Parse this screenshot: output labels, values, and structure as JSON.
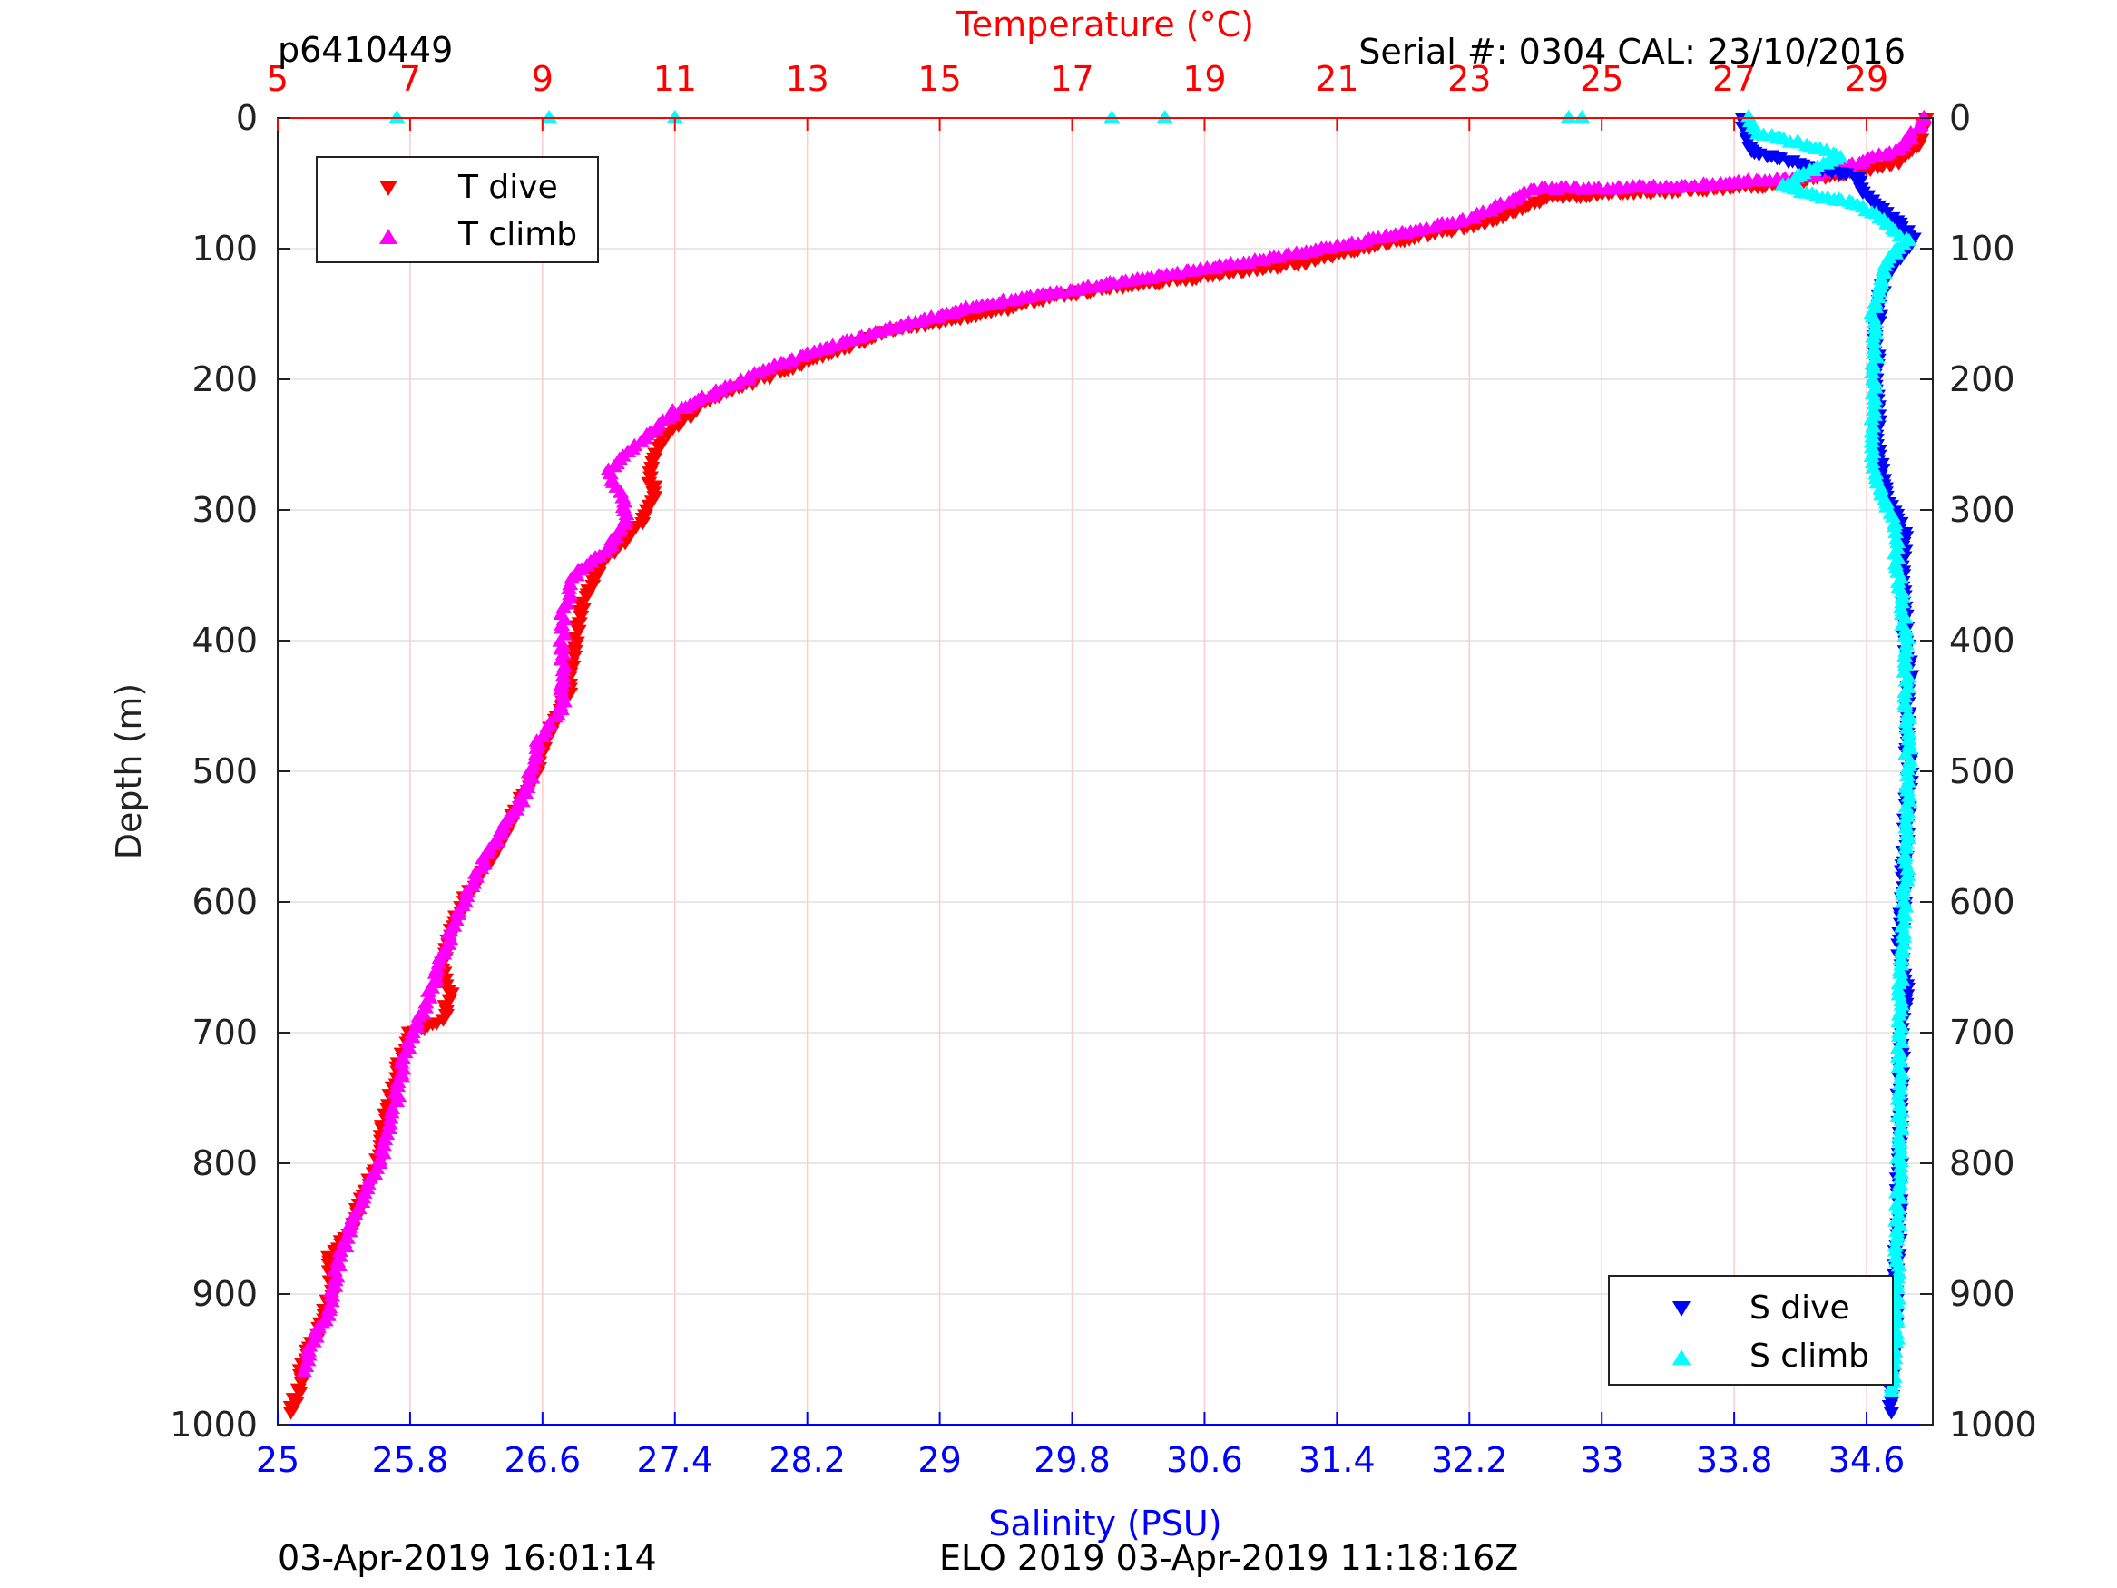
{
  "header": {
    "profile_id": "p6410449",
    "serial": "Serial #: 0304  CAL: 23/10/2016"
  },
  "footer": {
    "left": "03-Apr-2019 16:01:14",
    "center": "ELO 2019 03-Apr-2019 11:18:16Z"
  },
  "colors": {
    "t_dive": "#ff0000",
    "t_climb": "#ff00ff",
    "s_dive": "#0000ff",
    "s_climb": "#00ffff",
    "temp_axis": "#ff0000",
    "sal_axis": "#0000ff",
    "grid_temp": "#ffcccc",
    "grid_depth": "#e0e0e0"
  },
  "chart_data": {
    "type": "scatter",
    "title": "",
    "ylabel": "Depth (m)",
    "ylim": [
      0,
      1000
    ],
    "y_reversed": true,
    "y_ticks": [
      0,
      100,
      200,
      300,
      400,
      500,
      600,
      700,
      800,
      900,
      1000
    ],
    "temperature_axis": {
      "label": "Temperature (°C)",
      "position": "top",
      "lim": [
        5,
        30
      ],
      "ticks": [
        5,
        7,
        9,
        11,
        13,
        15,
        17,
        19,
        21,
        23,
        25,
        27,
        29
      ],
      "grid": true
    },
    "salinity_axis": {
      "label": "Salinity (PSU)",
      "position": "bottom",
      "lim": [
        25,
        35
      ],
      "ticks": [
        "25",
        "25.8",
        "26.6",
        "27.4",
        "28.2",
        "29",
        "29.8",
        "30.6",
        "31.4",
        "32.2",
        "33",
        "33.8",
        "34.6"
      ],
      "grid": false
    },
    "legends": [
      {
        "placement": "top-left",
        "entries": [
          "T dive",
          "T climb"
        ]
      },
      {
        "placement": "bottom-right",
        "entries": [
          "S dive",
          "S climb"
        ]
      }
    ],
    "series": [
      {
        "name": "T dive",
        "axis": "temperature",
        "marker": "triangle-down",
        "points": [
          [
            29.9,
            0
          ],
          [
            29.8,
            20
          ],
          [
            29.4,
            35
          ],
          [
            27.8,
            50
          ],
          [
            25.5,
            57
          ],
          [
            24.2,
            60
          ],
          [
            23.2,
            80
          ],
          [
            21.8,
            95
          ],
          [
            20.5,
            110
          ],
          [
            18.8,
            122
          ],
          [
            16.8,
            135
          ],
          [
            15.8,
            148
          ],
          [
            14.2,
            163
          ],
          [
            12.8,
            190
          ],
          [
            11.5,
            215
          ],
          [
            10.8,
            245
          ],
          [
            10.6,
            270
          ],
          [
            10.7,
            290
          ],
          [
            10.5,
            310
          ],
          [
            9.9,
            340
          ],
          [
            9.6,
            370
          ],
          [
            9.5,
            400
          ],
          [
            9.4,
            440
          ],
          [
            9.1,
            470
          ],
          [
            8.9,
            500
          ],
          [
            8.6,
            530
          ],
          [
            8.3,
            560
          ],
          [
            7.8,
            600
          ],
          [
            7.6,
            625
          ],
          [
            7.5,
            650
          ],
          [
            7.6,
            670
          ],
          [
            7.5,
            690
          ],
          [
            7.0,
            700
          ],
          [
            6.8,
            730
          ],
          [
            6.6,
            770
          ],
          [
            6.5,
            800
          ],
          [
            6.1,
            850
          ],
          [
            5.8,
            870
          ],
          [
            5.8,
            900
          ],
          [
            5.6,
            930
          ],
          [
            5.4,
            950
          ],
          [
            5.3,
            975
          ],
          [
            5.2,
            990
          ]
        ]
      },
      {
        "name": "T climb",
        "axis": "temperature",
        "marker": "triangle-up",
        "points": [
          [
            29.9,
            0
          ],
          [
            29.5,
            25
          ],
          [
            28.2,
            45
          ],
          [
            26.2,
            53
          ],
          [
            24.0,
            55
          ],
          [
            23.0,
            78
          ],
          [
            21.4,
            95
          ],
          [
            19.5,
            112
          ],
          [
            17.5,
            128
          ],
          [
            15.5,
            145
          ],
          [
            14.0,
            165
          ],
          [
            12.5,
            190
          ],
          [
            11.0,
            225
          ],
          [
            10.0,
            270
          ],
          [
            10.3,
            305
          ],
          [
            10.0,
            330
          ],
          [
            9.5,
            350
          ],
          [
            9.3,
            380
          ],
          [
            9.3,
            420
          ],
          [
            9.3,
            450
          ],
          [
            8.9,
            480
          ],
          [
            8.8,
            510
          ],
          [
            8.6,
            530
          ],
          [
            8.2,
            560
          ],
          [
            7.8,
            600
          ],
          [
            7.5,
            640
          ],
          [
            7.3,
            670
          ],
          [
            6.9,
            720
          ],
          [
            6.8,
            750
          ],
          [
            6.6,
            790
          ],
          [
            6.1,
            850
          ],
          [
            5.9,
            880
          ],
          [
            5.8,
            910
          ],
          [
            5.5,
            940
          ],
          [
            5.4,
            960
          ]
        ]
      },
      {
        "name": "S dive",
        "axis": "salinity",
        "marker": "triangle-down",
        "points": [
          [
            33.85,
            0
          ],
          [
            33.9,
            25
          ],
          [
            34.3,
            38
          ],
          [
            34.55,
            45
          ],
          [
            34.6,
            60
          ],
          [
            34.8,
            80
          ],
          [
            34.88,
            92
          ],
          [
            34.83,
            100
          ],
          [
            34.78,
            110
          ],
          [
            34.72,
            120
          ],
          [
            34.68,
            140
          ],
          [
            34.66,
            170
          ],
          [
            34.66,
            200
          ],
          [
            34.67,
            250
          ],
          [
            34.7,
            280
          ],
          [
            34.76,
            300
          ],
          [
            34.83,
            320
          ],
          [
            34.82,
            350
          ],
          [
            34.84,
            400
          ],
          [
            34.86,
            430
          ],
          [
            34.84,
            470
          ],
          [
            34.86,
            500
          ],
          [
            34.84,
            540
          ],
          [
            34.83,
            560
          ],
          [
            34.82,
            600
          ],
          [
            34.8,
            640
          ],
          [
            34.84,
            670
          ],
          [
            34.81,
            700
          ],
          [
            34.8,
            750
          ],
          [
            34.8,
            800
          ],
          [
            34.79,
            850
          ],
          [
            34.77,
            900
          ],
          [
            34.76,
            950
          ],
          [
            34.75,
            970
          ],
          [
            34.75,
            990
          ]
        ]
      },
      {
        "name": "S climb",
        "axis": "salinity",
        "marker": "triangle-up",
        "points": [
          [
            33.9,
            0
          ],
          [
            33.93,
            12
          ],
          [
            34.2,
            20
          ],
          [
            34.45,
            30
          ],
          [
            34.3,
            38
          ],
          [
            34.2,
            45
          ],
          [
            34.1,
            52
          ],
          [
            34.3,
            60
          ],
          [
            34.52,
            65
          ],
          [
            34.7,
            78
          ],
          [
            34.85,
            95
          ],
          [
            34.8,
            100
          ],
          [
            34.73,
            110
          ],
          [
            34.68,
            130
          ],
          [
            34.64,
            150
          ],
          [
            34.65,
            180
          ],
          [
            34.64,
            220
          ],
          [
            34.64,
            260
          ],
          [
            34.66,
            280
          ],
          [
            34.72,
            295
          ],
          [
            34.76,
            310
          ],
          [
            34.78,
            330
          ],
          [
            34.8,
            360
          ],
          [
            34.84,
            400
          ],
          [
            34.84,
            440
          ],
          [
            34.85,
            480
          ],
          [
            34.85,
            520
          ],
          [
            34.84,
            560
          ],
          [
            34.83,
            600
          ],
          [
            34.82,
            640
          ],
          [
            34.8,
            680
          ],
          [
            34.8,
            720
          ],
          [
            34.8,
            780
          ],
          [
            34.79,
            840
          ],
          [
            34.78,
            900
          ],
          [
            34.77,
            950
          ],
          [
            34.75,
            975
          ]
        ]
      }
    ],
    "isolated_points": {
      "name": "S climb",
      "axis": "temperature",
      "marker": "triangle-up",
      "points": [
        [
          6.8,
          0
        ],
        [
          9.1,
          0
        ],
        [
          11.0,
          0
        ],
        [
          17.6,
          0
        ],
        [
          18.4,
          0
        ],
        [
          24.5,
          0
        ],
        [
          24.7,
          0
        ]
      ]
    }
  }
}
